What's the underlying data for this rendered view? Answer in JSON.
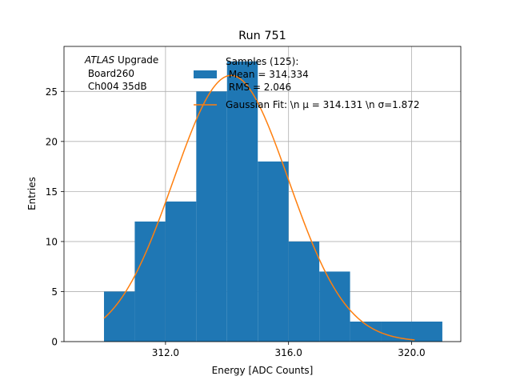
{
  "chart_data": {
    "type": "bar",
    "title": "Run 751",
    "xlabel": "Energy [ADC Counts]",
    "ylabel": "Entries",
    "xlim": [
      308.7,
      321.6
    ],
    "ylim": [
      0,
      29.5
    ],
    "xticks": [
      312.0,
      316.0,
      320.0
    ],
    "xtick_labels": [
      "312.0",
      "316.0",
      "320.0"
    ],
    "yticks": [
      0,
      5,
      10,
      15,
      20,
      25
    ],
    "ytick_labels": [
      "0",
      "5",
      "10",
      "15",
      "20",
      "25"
    ],
    "grid": true,
    "legend_position": "top-right",
    "annotation": {
      "italic": "ATLAS",
      "suffix": " Upgrade",
      "line2": " Board260",
      "line3": " Ch004 35dB"
    },
    "histogram": {
      "name_line1": "Samples (125):",
      "name_line2": " Mean = 314.334",
      "name_line3": " RMS = 2.046",
      "color": "#1f77b4",
      "bins": [
        {
          "x0": 310,
          "x1": 311,
          "count": 5
        },
        {
          "x0": 311,
          "x1": 312,
          "count": 12
        },
        {
          "x0": 312,
          "x1": 313,
          "count": 14
        },
        {
          "x0": 313,
          "x1": 314,
          "count": 25
        },
        {
          "x0": 314,
          "x1": 315,
          "count": 28
        },
        {
          "x0": 315,
          "x1": 316,
          "count": 18
        },
        {
          "x0": 316,
          "x1": 317,
          "count": 10
        },
        {
          "x0": 317,
          "x1": 318,
          "count": 7
        },
        {
          "x0": 318,
          "x1": 319,
          "count": 2
        },
        {
          "x0": 319,
          "x1": 320,
          "count": 2
        },
        {
          "x0": 320,
          "x1": 321,
          "count": 2
        }
      ]
    },
    "fit": {
      "name": "Gaussian Fit: \\n μ = 314.131 \\n σ=1.872",
      "color": "#ff7f0e",
      "mu": 314.131,
      "sigma": 1.872,
      "amplitude": 26.6,
      "x_range": [
        310.0,
        320.1
      ]
    }
  }
}
